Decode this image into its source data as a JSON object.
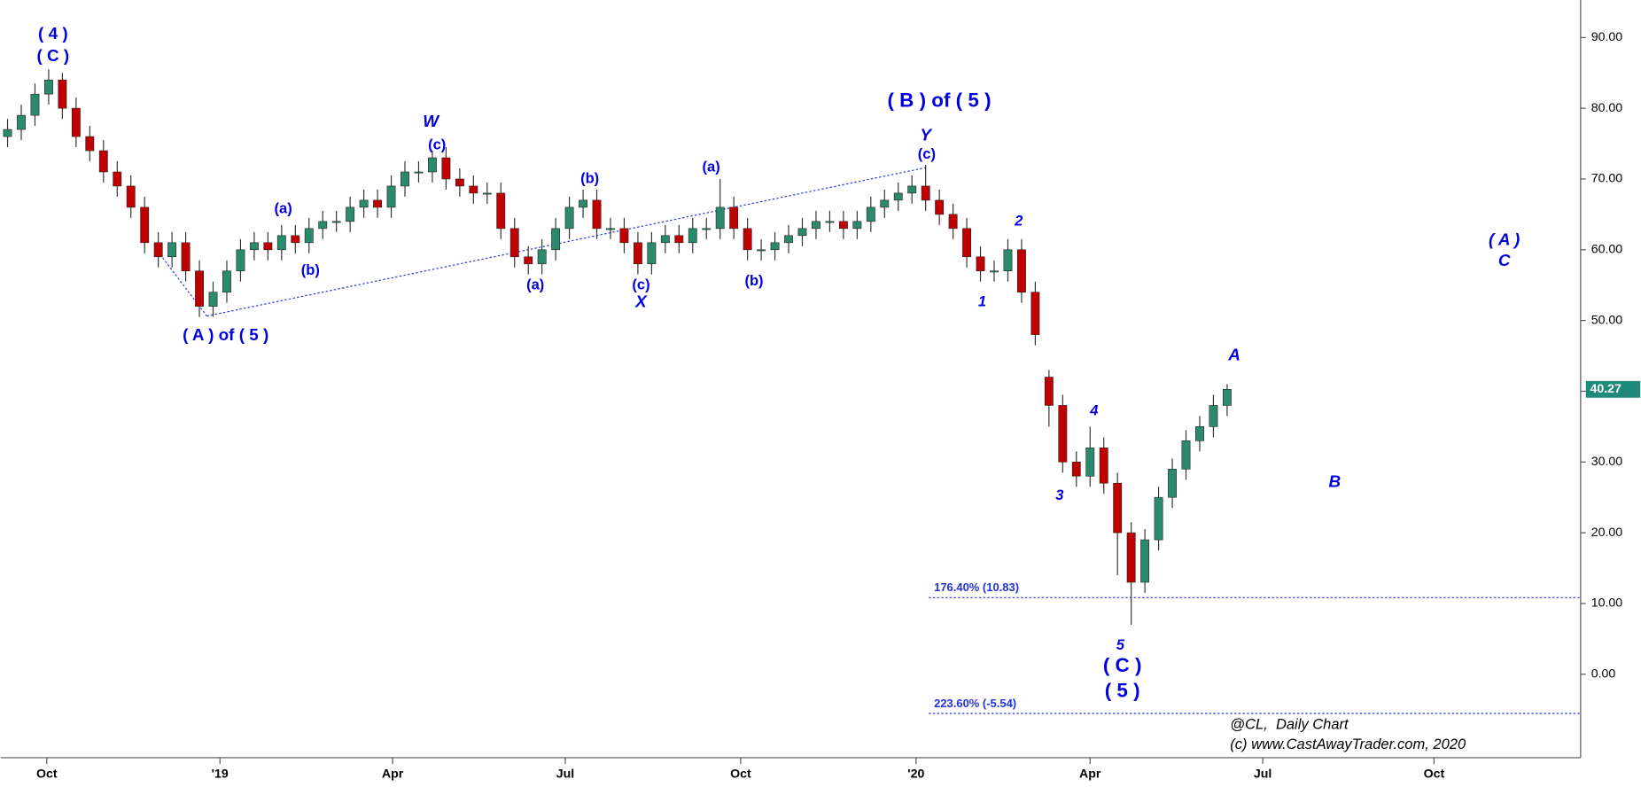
{
  "chart_data": {
    "type": "candlestick",
    "xlim": [
      0,
      115.3
    ],
    "xticks": [
      {
        "value": 3.36,
        "label": "Oct"
      },
      {
        "value": 16,
        "label": "'19"
      },
      {
        "value": 28.6,
        "label": "Apr"
      },
      {
        "value": 41.2,
        "label": "Jul"
      },
      {
        "value": 54,
        "label": "Oct"
      },
      {
        "value": 66.8,
        "label": "'20"
      },
      {
        "value": 79.5,
        "label": "Apr"
      },
      {
        "value": 92.1,
        "label": "Jul"
      },
      {
        "value": 104.6,
        "label": "Oct"
      }
    ],
    "ylim": [
      -11.5,
      95.3
    ],
    "yticks": [
      {
        "value": 0,
        "label": "0.00"
      },
      {
        "value": 10,
        "label": "10.00"
      },
      {
        "value": 20,
        "label": "20.00"
      },
      {
        "value": 30,
        "label": "30.00"
      },
      {
        "value": 40,
        "label": "40.00"
      },
      {
        "value": 50,
        "label": "50.00"
      },
      {
        "value": 60,
        "label": "60.00"
      },
      {
        "value": 70,
        "label": "70.00"
      },
      {
        "value": 80,
        "label": "80.00"
      },
      {
        "value": 90,
        "label": "90.00"
      }
    ],
    "up_color": "#2b8a6e",
    "down_color": "#c00000",
    "open": [
      76,
      77,
      79,
      82,
      84,
      80,
      76,
      74,
      71,
      69,
      66,
      61,
      59,
      61,
      57,
      52,
      54,
      57,
      60,
      61,
      60,
      62,
      61,
      63,
      64,
      64,
      66,
      67,
      66,
      69,
      71,
      71,
      73,
      70,
      69,
      68,
      68,
      63,
      59,
      58,
      60,
      63,
      66,
      67,
      63,
      63,
      61,
      58,
      61,
      62,
      61,
      63,
      63,
      66,
      63,
      60,
      60,
      61,
      62,
      63,
      64,
      64,
      63,
      64,
      66,
      67,
      68,
      69,
      67,
      65,
      63,
      59,
      57,
      57,
      60,
      54,
      42,
      38,
      30,
      28,
      32,
      27,
      20,
      13,
      19,
      25,
      29,
      33,
      35,
      38
    ],
    "high": [
      78.5,
      80.5,
      83.5,
      85.5,
      85,
      81.5,
      77.5,
      75.5,
      72.5,
      70.5,
      67.5,
      62.5,
      62.5,
      62.5,
      58.5,
      55.5,
      58.5,
      61.5,
      62.5,
      62.5,
      63.5,
      63.5,
      64.5,
      65.5,
      65.5,
      67.5,
      68.5,
      68.5,
      70.5,
      72.5,
      72.5,
      74,
      74.5,
      71.5,
      70.5,
      69.5,
      69.5,
      64.5,
      60.5,
      61.5,
      64.5,
      67.5,
      68.5,
      68.5,
      64.5,
      64.5,
      62.5,
      62.5,
      63.5,
      63.5,
      64.5,
      64.5,
      70,
      67.5,
      64.5,
      61.5,
      62.5,
      63.5,
      64.5,
      65.5,
      65.5,
      65.5,
      65.5,
      67.5,
      68.5,
      69.5,
      70.5,
      72,
      68.5,
      66.5,
      64.5,
      60.5,
      58.5,
      61.5,
      61.5,
      55.5,
      43,
      39.5,
      31.5,
      35,
      33.5,
      28.5,
      21.5,
      20.5,
      26.5,
      30.5,
      34.5,
      36.5,
      39.5,
      41
    ],
    "low": [
      74.5,
      75.5,
      77.5,
      80.5,
      78.5,
      74.5,
      72.5,
      69.5,
      67.5,
      64.5,
      59.5,
      57.5,
      57.5,
      55.5,
      50.5,
      50.5,
      52.5,
      55.5,
      58.5,
      58.5,
      58.5,
      59.5,
      59.5,
      61.5,
      62.5,
      62.5,
      64.5,
      64.5,
      64.5,
      67.5,
      69.5,
      69.5,
      68.5,
      67.5,
      66.5,
      66.5,
      61.5,
      57.5,
      56.5,
      56.5,
      58.5,
      61.5,
      64.5,
      61.5,
      61.5,
      59.5,
      56.5,
      56.5,
      59.5,
      59.5,
      59.5,
      61.5,
      61.5,
      61.5,
      58.5,
      58.5,
      58.5,
      59.5,
      60.5,
      61.5,
      62.5,
      61.5,
      61.5,
      62.5,
      64.5,
      65.5,
      66.5,
      65.5,
      63.5,
      61.5,
      57.5,
      55.5,
      55.5,
      55.5,
      52.5,
      46.5,
      35,
      28.5,
      26.5,
      26.5,
      25.5,
      14,
      7,
      11.5,
      17.5,
      23.5,
      27.5,
      31.5,
      33.5,
      36.5
    ],
    "close": [
      77,
      79,
      82,
      84,
      80,
      76,
      74,
      71,
      69,
      66,
      61,
      59,
      61,
      57,
      52,
      54,
      57,
      60,
      61,
      60,
      62,
      61,
      63,
      64,
      64,
      66,
      67,
      66,
      69,
      71,
      71,
      73,
      70,
      69,
      68,
      68,
      63,
      59,
      58,
      60,
      63,
      66,
      67,
      63,
      63,
      61,
      58,
      61,
      62,
      61,
      63,
      63,
      66,
      63,
      60,
      60,
      61,
      62,
      63,
      64,
      64,
      63,
      64,
      66,
      67,
      68,
      69,
      67,
      65,
      63,
      59,
      57,
      57,
      60,
      54,
      48,
      38,
      30,
      28,
      32,
      27,
      20,
      13,
      19,
      25,
      29,
      33,
      35,
      38,
      40.27
    ],
    "last_price": 40.27,
    "annotation_color": "#0000e0",
    "annotations": [
      "( 4 )",
      "( C )",
      "(a)",
      "(b)",
      "( A ) of ( 5 )",
      "W",
      "(c)",
      "(b)",
      "(a)",
      "(c)",
      "X",
      "(a)",
      "(b)",
      "( B ) of ( 5 )",
      "Y",
      "(c)",
      "2",
      "1",
      "3",
      "4",
      "5",
      "( C )",
      "( 5 )",
      "A",
      "B",
      "( A )",
      "C"
    ],
    "fib_levels": [
      {
        "value": 10.83,
        "label": "176.40% (10.83)"
      },
      {
        "value": -5.54,
        "label": "223.60% (-5.54)"
      }
    ],
    "footer": [
      "@CL,  Daily Chart",
      "(c) www.CastAwayTrader.com, 2020"
    ]
  }
}
